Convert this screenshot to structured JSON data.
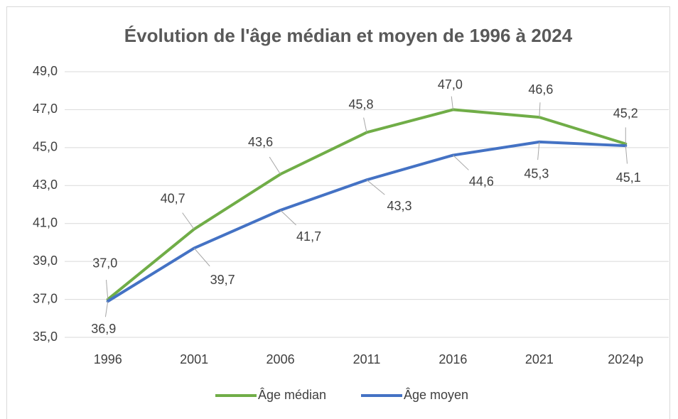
{
  "chart_data": {
    "type": "line",
    "title": "Évolution de l'âge médian et moyen de 1996 à 2024",
    "categories": [
      "1996",
      "2001",
      "2006",
      "2011",
      "2016",
      "2021",
      "2024p"
    ],
    "series": [
      {
        "name": "Âge médian",
        "color": "#70ad47",
        "values": [
          37.0,
          40.7,
          43.6,
          45.8,
          47.0,
          46.6,
          45.2
        ],
        "value_labels": [
          "37,0",
          "40,7",
          "43,6",
          "45,8",
          "47,0",
          "46,6",
          "45,2"
        ]
      },
      {
        "name": "Âge moyen",
        "color": "#4472c4",
        "values": [
          36.9,
          39.7,
          41.7,
          43.3,
          44.6,
          45.3,
          45.1
        ],
        "value_labels": [
          "36,9",
          "39,7",
          "41,7",
          "43,3",
          "44,6",
          "45,3",
          "45,1"
        ]
      }
    ],
    "ylim": [
      35,
      49
    ],
    "yticks": [
      {
        "value": 35,
        "label": "35,0"
      },
      {
        "value": 37,
        "label": "37,0"
      },
      {
        "value": 39,
        "label": "39,0"
      },
      {
        "value": 41,
        "label": "41,0"
      },
      {
        "value": 43,
        "label": "43,0"
      },
      {
        "value": 45,
        "label": "45,0"
      },
      {
        "value": 47,
        "label": "47,0"
      },
      {
        "value": 49,
        "label": "49,0"
      }
    ],
    "grid": true,
    "legend": "bottom"
  }
}
